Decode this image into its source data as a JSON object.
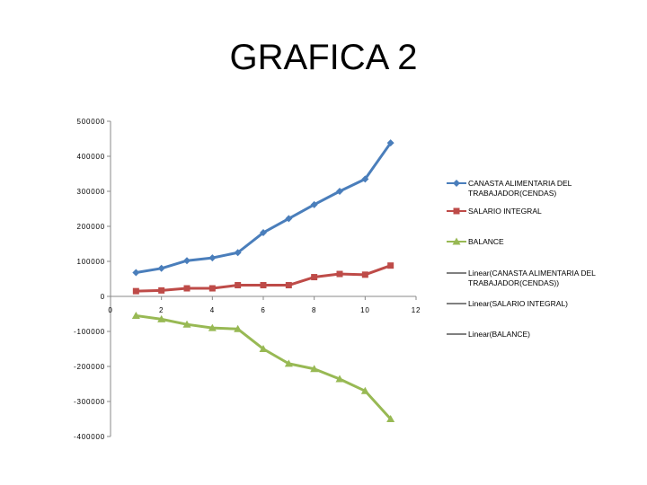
{
  "slide": {
    "title": "GRAFICA 2"
  },
  "chart_data": {
    "type": "line",
    "title": "",
    "xlabel": "",
    "ylabel": "",
    "xlim": [
      0,
      12
    ],
    "ylim": [
      -400000,
      500000
    ],
    "x_ticks": [
      0,
      2,
      4,
      6,
      8,
      10,
      12
    ],
    "y_ticks": [
      500000,
      400000,
      300000,
      200000,
      100000,
      0,
      -100000,
      -200000,
      -300000,
      -400000
    ],
    "x_tick_labels": [
      "0",
      "2",
      "4",
      "6",
      "8",
      "10",
      "12"
    ],
    "y_tick_labels": [
      "500000",
      "400000",
      "300000",
      "200000",
      "100000",
      "0",
      "-100000",
      "-200000",
      "-300000",
      "-400000"
    ],
    "grid": false,
    "legend_position": "right",
    "x": [
      1,
      2,
      3,
      4,
      5,
      6,
      7,
      8,
      9,
      10,
      11
    ],
    "series": [
      {
        "name": "CANASTA ALIMENTARIA DEL TRABAJADOR(CENDAS)",
        "color": "#4a7ebb",
        "marker": "diamond",
        "values": [
          68000,
          80000,
          102000,
          110000,
          125000,
          182000,
          222000,
          262000,
          300000,
          335000,
          438000
        ]
      },
      {
        "name": "SALARIO INTEGRAL",
        "color": "#be4b48",
        "marker": "square",
        "values": [
          15000,
          17000,
          23000,
          23000,
          32000,
          32000,
          32000,
          55000,
          64000,
          62000,
          88000
        ]
      },
      {
        "name": "BALANCE",
        "color": "#98b954",
        "marker": "triangle",
        "values": [
          -55000,
          -65000,
          -80000,
          -90000,
          -93000,
          -150000,
          -192000,
          -207000,
          -236000,
          -270000,
          -350000
        ]
      }
    ],
    "trendline_legend": [
      {
        "name": "Linear(CANASTA ALIMENTARIA DEL TRABAJADOR(CENDAS))"
      },
      {
        "name": "Linear(SALARIO INTEGRAL)"
      },
      {
        "name": "Linear(BALANCE)"
      }
    ]
  }
}
